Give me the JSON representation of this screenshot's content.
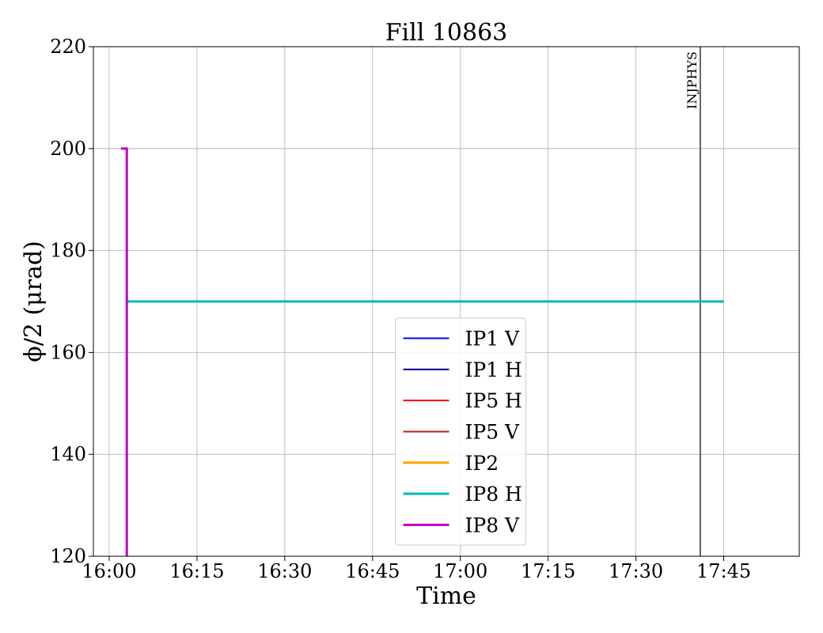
{
  "chart_data": {
    "type": "line",
    "title": "Fill 10863",
    "xlabel": "Time",
    "ylabel": "ϕ/2 (μrad)",
    "xlim_minutes": [
      0,
      112.5
    ],
    "ylim": [
      120,
      220
    ],
    "x_ticks": [
      "16:00",
      "16:15",
      "16:30",
      "16:45",
      "17:00",
      "17:15",
      "17:30",
      "17:45"
    ],
    "y_ticks": [
      120,
      140,
      160,
      180,
      200,
      220
    ],
    "grid": true,
    "legend_position": "lower-center",
    "series": [
      {
        "name": "IP1 V",
        "color": "#0000ff",
        "width": 2,
        "points": []
      },
      {
        "name": "IP1 H",
        "color": "#00008b",
        "width": 2,
        "points": []
      },
      {
        "name": "IP5 H",
        "color": "#ff0000",
        "width": 2,
        "points": []
      },
      {
        "name": "IP5 V",
        "color": "#b22222",
        "width": 2,
        "points": []
      },
      {
        "name": "IP2",
        "color": "#ffa500",
        "width": 3,
        "points": []
      },
      {
        "name": "IP8 H",
        "color": "#00b8b8",
        "width": 3,
        "points": [
          {
            "x": "16:03",
            "y": 170
          },
          {
            "x": "17:45",
            "y": 170
          }
        ]
      },
      {
        "name": "IP8 V",
        "color": "#bf00bf",
        "width": 3,
        "points": [
          {
            "x": "16:02",
            "y": 200
          },
          {
            "x": "16:03",
            "y": 200
          },
          {
            "x": "16:03",
            "y": 120
          }
        ]
      }
    ],
    "annotations": [
      {
        "label": "INJPHYS",
        "x": "17:41",
        "color": "#000000"
      }
    ]
  }
}
